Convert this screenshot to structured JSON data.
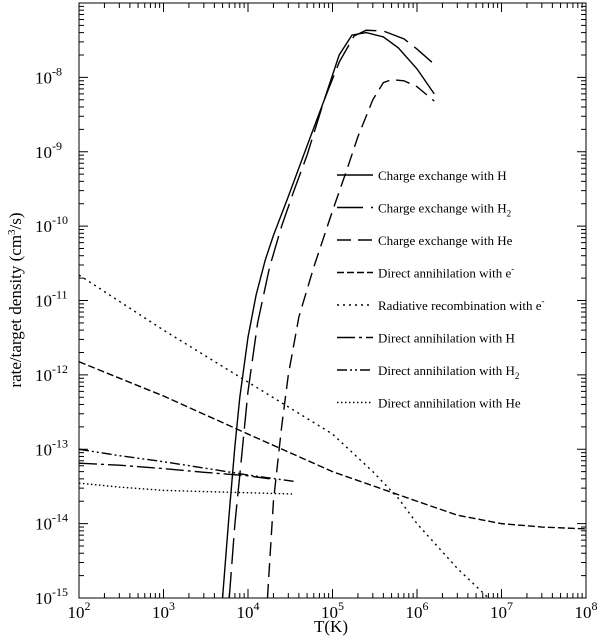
{
  "chart_data": {
    "type": "line",
    "xlabel": "T(K)",
    "ylabel": "rate/target density (cm3/s)",
    "ylabel_parts": {
      "pre": "rate/target density (cm",
      "sup": "3",
      "post": "/s)"
    },
    "x_scale": "log",
    "y_scale": "log",
    "xlim": [
      100,
      100000000
    ],
    "ylim": [
      1e-15,
      1e-07
    ],
    "x_ticks": [
      {
        "value": 100,
        "base": "10",
        "exp": "2"
      },
      {
        "value": 1000,
        "base": "10",
        "exp": "3"
      },
      {
        "value": 10000,
        "base": "10",
        "exp": "4"
      },
      {
        "value": 100000,
        "base": "10",
        "exp": "5"
      },
      {
        "value": 1000000,
        "base": "10",
        "exp": "6"
      },
      {
        "value": 10000000,
        "base": "10",
        "exp": "7"
      },
      {
        "value": 100000000,
        "base": "10",
        "exp": "8"
      }
    ],
    "y_ticks": [
      {
        "value": 1e-15,
        "base": "10",
        "exp": "-15"
      },
      {
        "value": 1e-14,
        "base": "10",
        "exp": "-14"
      },
      {
        "value": 1e-13,
        "base": "10",
        "exp": "-13"
      },
      {
        "value": 1e-12,
        "base": "10",
        "exp": "-12"
      },
      {
        "value": 1e-11,
        "base": "10",
        "exp": "-11"
      },
      {
        "value": 1e-10,
        "base": "10",
        "exp": "-10"
      },
      {
        "value": 1e-09,
        "base": "10",
        "exp": "-9"
      },
      {
        "value": 1e-08,
        "base": "10",
        "exp": "-8"
      }
    ],
    "grid": false,
    "legend_position": "right",
    "series": [
      {
        "name": "Charge exchange with H",
        "label_parts": {
          "pre": "Charge exchange with H",
          "sub": "",
          "sup": "",
          "post": ""
        },
        "dash": "",
        "x": [
          5000,
          5500,
          6000,
          7000,
          8000,
          10000,
          12500,
          16000,
          20000,
          30000,
          50000,
          80000,
          120000,
          170000,
          250000,
          400000,
          600000,
          1000000,
          1600000
        ],
        "y": [
          1e-15,
          4e-15,
          1.4e-14,
          1.1e-13,
          5e-13,
          3.2e-12,
          1.2e-11,
          3.5e-11,
          7.5e-11,
          2.5e-10,
          1.2e-09,
          5e-09,
          2e-08,
          3.7e-08,
          4e-08,
          3.5e-08,
          2.5e-08,
          1.3e-08,
          6e-09
        ]
      },
      {
        "name": "Charge exchange with H2",
        "label_parts": {
          "pre": "Charge exchange with H",
          "sub": "2",
          "sup": "",
          "post": ""
        },
        "dash": "26 8",
        "x": [
          6000,
          7000,
          8000,
          10000,
          13000,
          18000,
          25000,
          35000,
          50000,
          80000,
          120000,
          180000,
          250000,
          400000,
          700000,
          1000000,
          1500000
        ],
        "y": [
          1e-15,
          1e-14,
          4.5e-14,
          6e-13,
          5e-12,
          2.8e-11,
          1e-10,
          3e-10,
          9e-10,
          5e-09,
          1.6e-08,
          3.6e-08,
          4.3e-08,
          4.2e-08,
          3.3e-08,
          2.4e-08,
          1.6e-08
        ]
      },
      {
        "name": "Charge exchange with He",
        "label_parts": {
          "pre": "Charge exchange with He",
          "sub": "",
          "sup": "",
          "post": ""
        },
        "dash": "14 7",
        "x": [
          17000,
          20000,
          25000,
          30000,
          40000,
          60000,
          100000,
          150000,
          200000,
          300000,
          400000,
          500000,
          700000,
          1000000,
          1600000
        ],
        "y": [
          1e-15,
          2e-14,
          2e-13,
          1e-12,
          6e-12,
          2.8e-11,
          1.6e-10,
          6e-10,
          1.6e-09,
          5e-09,
          8.5e-09,
          9.3e-09,
          9e-09,
          7.5e-09,
          4.8e-09
        ]
      },
      {
        "name": "Direct annihilation with e-",
        "label_parts": {
          "pre": "Direct annihilation with e",
          "sub": "",
          "sup": "-",
          "post": ""
        },
        "dash": "7 3",
        "x": [
          100,
          1000,
          10000,
          100000,
          1000000,
          3000000,
          10000000,
          30000000,
          100000000
        ],
        "y": [
          1.5e-12,
          5.2e-13,
          1.6e-13,
          5e-14,
          2e-14,
          1.3e-14,
          1e-14,
          9e-15,
          8.5e-15
        ]
      },
      {
        "name": "Radiative recombination with e-",
        "label_parts": {
          "pre": "Radiative recombination with e",
          "sub": "",
          "sup": "-",
          "post": ""
        },
        "dash": "2 4",
        "x": [
          100,
          1000,
          10000,
          100000,
          300000,
          600000,
          1000000,
          3000000,
          7000000
        ],
        "y": [
          2.2e-11,
          4e-12,
          8e-13,
          1.6e-13,
          5e-14,
          2.2e-14,
          1e-14,
          2.5e-15,
          1e-15
        ]
      },
      {
        "name": "Direct annihilation with H",
        "label_parts": {
          "pre": "Direct annihilation with H",
          "sub": "",
          "sup": "",
          "post": ""
        },
        "dash": "18 4 3 4",
        "x": [
          100,
          300,
          1000,
          3000,
          10000,
          18000
        ],
        "y": [
          6.5e-14,
          6.1e-14,
          5.5e-14,
          4.9e-14,
          4.4e-14,
          4e-14
        ]
      },
      {
        "name": "Direct annihilation with H2",
        "label_parts": {
          "pre": "Direct annihilation with H",
          "sub": "2",
          "sup": "",
          "post": ""
        },
        "dash": "10 3 2 3 2 3",
        "x": [
          100,
          300,
          1000,
          3000,
          10000,
          35000
        ],
        "y": [
          1e-13,
          8.2e-14,
          6.8e-14,
          5.6e-14,
          4.5e-14,
          3.7e-14
        ]
      },
      {
        "name": "Direct annihilation with He",
        "label_parts": {
          "pre": "Direct annihilation with He",
          "sub": "",
          "sup": "",
          "post": ""
        },
        "dash": "1.5 2.5",
        "x": [
          100,
          300,
          1000,
          3000,
          10000,
          35000
        ],
        "y": [
          3.5e-14,
          3.1e-14,
          2.8e-14,
          2.7e-14,
          2.6e-14,
          2.5e-14
        ]
      }
    ]
  }
}
